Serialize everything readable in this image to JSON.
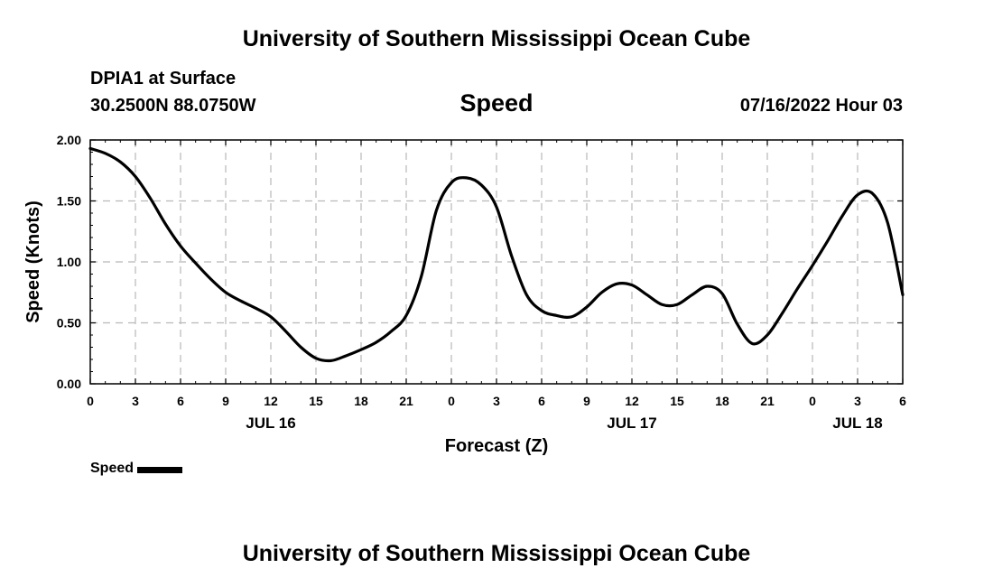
{
  "header": {
    "title": "University of Southern Mississippi Ocean Cube",
    "station": "DPIA1 at Surface",
    "latlon": "30.2500N  88.0750W",
    "variable": "Speed",
    "datetime": "07/16/2022 Hour 03"
  },
  "footer": {
    "title": "University of Southern Mississippi Ocean Cube"
  },
  "legend": {
    "label": "Speed"
  },
  "chart_data": {
    "type": "line",
    "title": "Speed",
    "xlabel": "Forecast (Z)",
    "ylabel": "Speed (Knots)",
    "ylim": [
      0,
      2
    ],
    "xlim": [
      0,
      54
    ],
    "grid": true,
    "yticks": [
      "0.00",
      "0.50",
      "1.00",
      "1.50",
      "2.00"
    ],
    "xtick_labels": [
      "0",
      "3",
      "6",
      "9",
      "12",
      "15",
      "18",
      "21",
      "0",
      "3",
      "6",
      "9",
      "12",
      "15",
      "18",
      "21",
      "0",
      "3",
      "6"
    ],
    "day_labels": [
      {
        "label": "JUL 16",
        "hour": 12
      },
      {
        "label": "JUL 17",
        "hour": 36
      },
      {
        "label": "JUL 18",
        "hour": 51
      }
    ],
    "series": [
      {
        "name": "Speed",
        "color": "#000000",
        "x": [
          0,
          1,
          2,
          3,
          4,
          5,
          6,
          7,
          8,
          9,
          10,
          11,
          12,
          13,
          14,
          15,
          16,
          17,
          18,
          19,
          20,
          21,
          22,
          23,
          24,
          25,
          26,
          27,
          28,
          29,
          30,
          31,
          32,
          33,
          34,
          35,
          36,
          37,
          38,
          39,
          40,
          41,
          42,
          43,
          44,
          45,
          46,
          47,
          48,
          49,
          50,
          51,
          52,
          53,
          54
        ],
        "values": [
          1.93,
          1.89,
          1.82,
          1.7,
          1.52,
          1.31,
          1.13,
          0.99,
          0.86,
          0.75,
          0.68,
          0.62,
          0.55,
          0.43,
          0.3,
          0.21,
          0.19,
          0.23,
          0.28,
          0.34,
          0.43,
          0.56,
          0.88,
          1.42,
          1.65,
          1.69,
          1.63,
          1.45,
          1.05,
          0.73,
          0.6,
          0.56,
          0.55,
          0.63,
          0.75,
          0.82,
          0.81,
          0.73,
          0.65,
          0.65,
          0.73,
          0.8,
          0.74,
          0.49,
          0.33,
          0.4,
          0.58,
          0.78,
          0.97,
          1.17,
          1.38,
          1.55,
          1.56,
          1.32,
          0.73
        ]
      }
    ]
  }
}
